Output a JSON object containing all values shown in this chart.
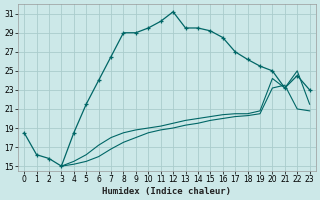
{
  "xlabel": "Humidex (Indice chaleur)",
  "background_color": "#cce8e8",
  "grid_color": "#aacccc",
  "line_color": "#006666",
  "x_ticks": [
    0,
    1,
    2,
    3,
    4,
    5,
    6,
    7,
    8,
    9,
    10,
    11,
    12,
    13,
    14,
    15,
    16,
    17,
    18,
    19,
    20,
    21,
    22,
    23
  ],
  "y_ticks": [
    15,
    17,
    19,
    21,
    23,
    25,
    27,
    29,
    31
  ],
  "xlim": [
    -0.5,
    23.5
  ],
  "ylim": [
    14.5,
    32.0
  ],
  "line1_x": [
    0,
    1,
    2,
    3,
    4,
    5,
    6,
    7,
    8,
    9,
    10,
    11,
    12,
    13,
    14,
    15,
    16,
    17,
    18,
    19,
    20,
    21,
    22,
    23
  ],
  "line1_y": [
    18.5,
    16.2,
    15.8,
    15.0,
    18.5,
    21.5,
    24.0,
    26.5,
    29.0,
    29.0,
    29.5,
    30.2,
    31.2,
    29.5,
    29.5,
    29.2,
    28.5,
    27.0,
    26.2,
    25.5,
    25.0,
    23.2,
    24.5,
    23.0
  ],
  "line2_x": [
    3,
    4,
    5,
    6,
    7,
    8,
    9,
    10,
    11,
    12,
    13,
    14,
    15,
    16,
    17,
    18,
    19,
    20,
    21,
    22,
    23
  ],
  "line2_y": [
    15.0,
    15.2,
    15.5,
    16.0,
    16.8,
    17.5,
    18.0,
    18.5,
    18.8,
    19.0,
    19.3,
    19.5,
    19.8,
    20.0,
    20.2,
    20.3,
    20.5,
    23.2,
    23.5,
    21.0,
    20.8
  ],
  "line3_x": [
    3,
    4,
    5,
    6,
    7,
    8,
    9,
    10,
    11,
    12,
    13,
    14,
    15,
    16,
    17,
    18,
    19,
    20,
    21,
    22,
    23
  ],
  "line3_y": [
    15.0,
    15.5,
    16.2,
    17.2,
    18.0,
    18.5,
    18.8,
    19.0,
    19.2,
    19.5,
    19.8,
    20.0,
    20.2,
    20.4,
    20.5,
    20.5,
    20.8,
    24.2,
    23.2,
    25.0,
    21.5
  ]
}
